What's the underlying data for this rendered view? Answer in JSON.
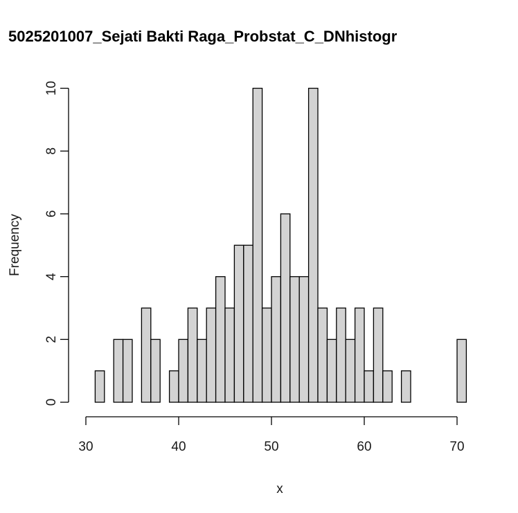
{
  "chart_data": {
    "type": "bar",
    "title": "5025201007_Sejati Bakti Raga_Probstat_C_DNhistogr",
    "xlabel": "x",
    "ylabel": "Frequency",
    "bin_width": 1,
    "bins_start": [
      31,
      32,
      33,
      34,
      35,
      36,
      37,
      38,
      39,
      40,
      41,
      42,
      43,
      44,
      45,
      46,
      47,
      48,
      49,
      50,
      51,
      52,
      53,
      54,
      55,
      56,
      57,
      58,
      59,
      60,
      61,
      62,
      63,
      64,
      65,
      66,
      67,
      68,
      69,
      70
    ],
    "values": [
      1,
      0,
      2,
      2,
      0,
      3,
      2,
      0,
      1,
      2,
      3,
      2,
      3,
      4,
      3,
      5,
      5,
      10,
      3,
      4,
      6,
      4,
      4,
      10,
      3,
      2,
      3,
      2,
      3,
      1,
      3,
      1,
      0,
      1,
      0,
      0,
      0,
      0,
      0,
      2
    ],
    "xlim": [
      30,
      71
    ],
    "ylim": [
      0,
      10
    ],
    "x_ticks": [
      "30",
      "40",
      "50",
      "60",
      "70"
    ],
    "y_ticks": [
      "0",
      "2",
      "4",
      "6",
      "8",
      "10"
    ],
    "grid": false,
    "colors": {
      "bar_fill": "#d3d3d3",
      "bar_stroke": "#000000"
    }
  }
}
